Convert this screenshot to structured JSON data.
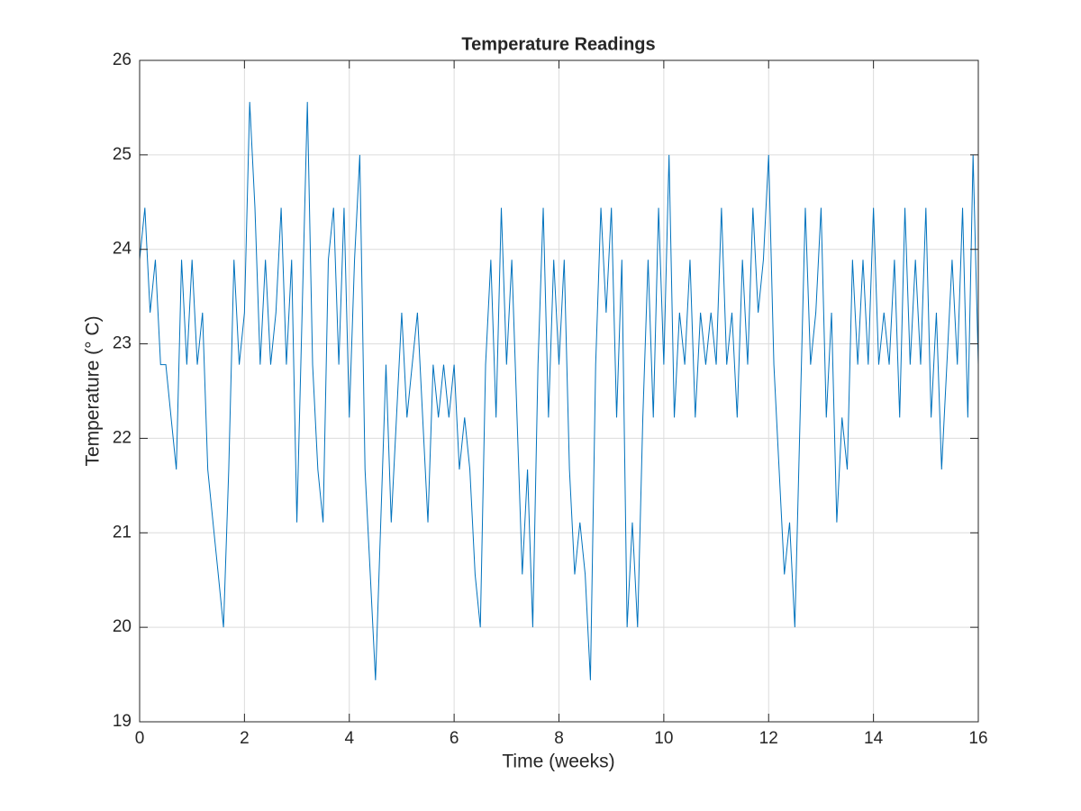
{
  "chart_data": {
    "type": "line",
    "title": "Temperature Readings",
    "xlabel": "Time (weeks)",
    "ylabel": "Temperature (° C)",
    "x": [
      0,
      0.1,
      0.2,
      0.3,
      0.4,
      0.5,
      0.6,
      0.7,
      0.8,
      0.9,
      1,
      1.1,
      1.2,
      1.3,
      1.4,
      1.5,
      1.6,
      1.7,
      1.8,
      1.9,
      2,
      2.1,
      2.2,
      2.3,
      2.4,
      2.5,
      2.6,
      2.7,
      2.8,
      2.9,
      3,
      3.1,
      3.2,
      3.3,
      3.4,
      3.5,
      3.6,
      3.7,
      3.8,
      3.9,
      4,
      4.1,
      4.2,
      4.3,
      4.4,
      4.5,
      4.6,
      4.7,
      4.8,
      4.9,
      5,
      5.1,
      5.2,
      5.3,
      5.4,
      5.5,
      5.6,
      5.7,
      5.8,
      5.9,
      6,
      6.1,
      6.2,
      6.3,
      6.4,
      6.5,
      6.6,
      6.7,
      6.8,
      6.9,
      7,
      7.1,
      7.2,
      7.3,
      7.4,
      7.5,
      7.6,
      7.7,
      7.8,
      7.9,
      8,
      8.1,
      8.2,
      8.3,
      8.4,
      8.5,
      8.6,
      8.7,
      8.8,
      8.9,
      9,
      9.1,
      9.2,
      9.3,
      9.4,
      9.5,
      9.6,
      9.7,
      9.8,
      9.9,
      10,
      10.1,
      10.2,
      10.3,
      10.4,
      10.5,
      10.6,
      10.7,
      10.8,
      10.9,
      11,
      11.1,
      11.2,
      11.3,
      11.4,
      11.5,
      11.6,
      11.7,
      11.8,
      11.9,
      12,
      12.1,
      12.2,
      12.3,
      12.4,
      12.5,
      12.6,
      12.7,
      12.8,
      12.9,
      13,
      13.1,
      13.2,
      13.3,
      13.4,
      13.5,
      13.6,
      13.7,
      13.8,
      13.9,
      14,
      14.1,
      14.2,
      14.3,
      14.4,
      14.5,
      14.6,
      14.7,
      14.8,
      14.9,
      15,
      15.1,
      15.2,
      15.3,
      15.4,
      15.5,
      15.6,
      15.7,
      15.8,
      15.9,
      16
    ],
    "series": [
      {
        "color": "#0072bd",
        "values": [
          23.89,
          24.44,
          23.33,
          23.89,
          22.78,
          22.78,
          22.22,
          21.67,
          23.89,
          22.78,
          23.89,
          22.78,
          23.33,
          21.67,
          21.11,
          20.56,
          20,
          21.67,
          23.89,
          22.78,
          23.33,
          25.56,
          24.44,
          22.78,
          23.89,
          22.78,
          23.33,
          24.44,
          22.78,
          23.89,
          21.11,
          23.33,
          25.56,
          22.78,
          21.67,
          21.11,
          23.89,
          24.44,
          22.78,
          24.44,
          22.22,
          23.89,
          25,
          21.67,
          20.56,
          19.44,
          21.11,
          22.78,
          21.11,
          22.22,
          23.33,
          22.22,
          22.78,
          23.33,
          22.22,
          21.11,
          22.78,
          22.22,
          22.78,
          22.22,
          22.78,
          21.67,
          22.22,
          21.67,
          20.56,
          20,
          22.78,
          23.89,
          22.22,
          24.44,
          22.78,
          23.89,
          22.22,
          20.56,
          21.67,
          20,
          22.78,
          24.44,
          22.22,
          23.89,
          22.78,
          23.89,
          21.67,
          20.56,
          21.11,
          20.56,
          19.44,
          22.78,
          24.44,
          23.33,
          24.44,
          22.22,
          23.89,
          20,
          21.11,
          20,
          22.22,
          23.89,
          22.22,
          24.44,
          22.78,
          25,
          22.22,
          23.33,
          22.78,
          23.89,
          22.22,
          23.33,
          22.78,
          23.33,
          22.78,
          24.44,
          22.78,
          23.33,
          22.22,
          23.89,
          22.78,
          24.44,
          23.33,
          23.89,
          25,
          22.78,
          21.67,
          20.56,
          21.11,
          20,
          22.22,
          24.44,
          22.78,
          23.33,
          24.44,
          22.22,
          23.33,
          21.11,
          22.22,
          21.67,
          23.89,
          22.78,
          23.89,
          22.78,
          24.44,
          22.78,
          23.33,
          22.78,
          23.89,
          22.22,
          24.44,
          22.78,
          23.89,
          22.78,
          24.44,
          22.22,
          23.33,
          21.67,
          22.78,
          23.89,
          22.78,
          24.44,
          22.22,
          25,
          22.78
        ]
      }
    ],
    "xlim": [
      0,
      16
    ],
    "ylim": [
      19,
      26
    ],
    "xticks": [
      0,
      2,
      4,
      6,
      8,
      10,
      12,
      14,
      16
    ],
    "yticks": [
      19,
      20,
      21,
      22,
      23,
      24,
      25,
      26
    ],
    "grid": true
  }
}
